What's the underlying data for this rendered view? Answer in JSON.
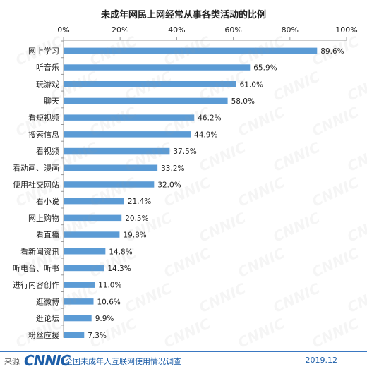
{
  "chart_data": {
    "type": "bar",
    "orientation": "horizontal",
    "title": "未成年网民上网经常从事各类活动的比例",
    "categories": [
      "网上学习",
      "听音乐",
      "玩游戏",
      "聊天",
      "看短视频",
      "搜索信息",
      "看视频",
      "看动画、漫画",
      "使用社交网站",
      "看小说",
      "网上购物",
      "看直播",
      "看新闻资讯",
      "听电台、听书",
      "进行内容创作",
      "逛微博",
      "逛论坛",
      "粉丝应援"
    ],
    "values": [
      89.6,
      65.9,
      61.0,
      58.0,
      46.2,
      44.9,
      37.5,
      33.2,
      32.0,
      21.4,
      20.5,
      19.8,
      14.8,
      14.3,
      11.0,
      10.6,
      9.9,
      7.3
    ],
    "value_labels": [
      "89.6%",
      "65.9%",
      "61.0%",
      "58.0%",
      "46.2%",
      "44.9%",
      "37.5%",
      "33.2%",
      "32.0%",
      "21.4%",
      "20.5%",
      "19.8%",
      "14.8%",
      "14.3%",
      "11.0%",
      "10.6%",
      "9.9%",
      "7.3%"
    ],
    "xticks": [
      "0%",
      "20%",
      "40%",
      "60%",
      "80%",
      "100%"
    ],
    "xlim": [
      0,
      100
    ],
    "axis_position": "top",
    "bar_color": "#5b9bd5",
    "grid": false,
    "legend": "none"
  },
  "footer": {
    "source_label": "来源",
    "logo_text": "CNNIC",
    "report_name": "全国未成年人互联网使用情况调查",
    "date": "2019.12"
  },
  "watermark_text": "CNNIC"
}
